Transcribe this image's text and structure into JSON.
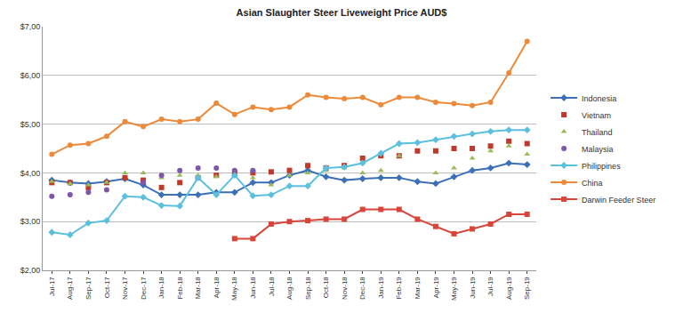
{
  "chart_data": {
    "type": "line",
    "title": "Asian Slaughter Steer Liveweight Price AUD$",
    "categories": [
      "Jul-17",
      "Aug-17",
      "Sep-17",
      "Oct-17",
      "Nov-17",
      "Dec-17",
      "Jan-18",
      "Feb-18",
      "Mar-18",
      "Apr-18",
      "May-18",
      "Jun-18",
      "Jul-18",
      "Aug-18",
      "Sep-18",
      "Oct-18",
      "Nov-18",
      "Dec-18",
      "Jan-19",
      "Feb-19",
      "Mar-19",
      "Apr-19",
      "May-19",
      "Jun-19",
      "Jul-19",
      "Aug-19",
      "Sep-19"
    ],
    "ylim": [
      2,
      7
    ],
    "yticks": [
      {
        "value": 2,
        "label": "$2,00"
      },
      {
        "value": 3,
        "label": "$3,00"
      },
      {
        "value": 4,
        "label": "$4,00"
      },
      {
        "value": 5,
        "label": "$5,00"
      },
      {
        "value": 6,
        "label": "$6,00"
      },
      {
        "value": 7,
        "label": "$7,00"
      }
    ],
    "grid": true,
    "legend": "right",
    "series": [
      {
        "name": "Indonesia",
        "color": "#3b6fb6",
        "marker": "diamond",
        "line_style": "solid",
        "values": [
          3.85,
          3.8,
          3.78,
          3.82,
          3.88,
          3.75,
          3.55,
          3.55,
          3.55,
          3.6,
          3.6,
          3.8,
          3.8,
          3.95,
          4.05,
          3.92,
          3.85,
          3.88,
          3.9,
          3.9,
          3.82,
          3.78,
          3.92,
          4.05,
          4.1,
          4.2,
          4.17
        ]
      },
      {
        "name": "Vietnam",
        "color": "#c0392b",
        "marker": "square",
        "line_style": "none",
        "values": [
          3.8,
          3.8,
          3.7,
          3.8,
          3.9,
          3.85,
          3.7,
          3.8,
          3.9,
          3.95,
          4.0,
          4.0,
          4.02,
          4.05,
          4.15,
          4.1,
          4.15,
          4.3,
          4.35,
          4.35,
          4.45,
          4.45,
          4.5,
          4.5,
          4.55,
          4.65,
          4.6
        ]
      },
      {
        "name": "Thailand",
        "color": "#9bbb59",
        "marker": "triangle",
        "line_style": "none",
        "values": [
          3.82,
          3.78,
          3.75,
          3.8,
          4.0,
          4.0,
          3.9,
          3.95,
          3.95,
          3.92,
          3.95,
          3.9,
          3.75,
          3.95,
          4.0,
          4.05,
          4.1,
          4.0,
          4.05,
          4.35,
          null,
          4.0,
          4.1,
          4.3,
          4.45,
          4.55,
          4.38
        ]
      },
      {
        "name": "Malaysia",
        "color": "#7e57a8",
        "marker": "circle",
        "line_style": "none",
        "values": [
          3.52,
          3.55,
          3.6,
          3.65,
          null,
          3.8,
          3.95,
          4.05,
          4.1,
          4.1,
          4.05,
          4.05,
          null,
          null,
          null,
          null,
          null,
          null,
          null,
          null,
          null,
          null,
          null,
          null,
          null,
          null,
          null
        ]
      },
      {
        "name": "Philippines",
        "color": "#5bc0de",
        "marker": "diamond",
        "line_style": "solid",
        "values": [
          2.78,
          2.73,
          2.97,
          3.02,
          3.52,
          3.5,
          3.33,
          3.32,
          3.9,
          3.55,
          3.95,
          3.53,
          3.55,
          3.73,
          3.73,
          4.1,
          4.12,
          4.2,
          4.4,
          4.6,
          4.62,
          4.68,
          4.75,
          4.8,
          4.85,
          4.88,
          4.88
        ]
      },
      {
        "name": "China",
        "color": "#ed8a3a",
        "marker": "circle",
        "line_style": "solid",
        "values": [
          4.38,
          4.57,
          4.6,
          4.75,
          5.05,
          4.95,
          5.1,
          5.05,
          5.1,
          5.43,
          5.2,
          5.35,
          5.3,
          5.35,
          5.6,
          5.55,
          5.52,
          5.55,
          5.4,
          5.55,
          5.55,
          5.45,
          5.42,
          5.38,
          5.45,
          6.05,
          6.7
        ]
      },
      {
        "name": "Darwin Feeder Steer",
        "color": "#d9453a",
        "marker": "square",
        "line_style": "solid",
        "values": [
          null,
          null,
          null,
          null,
          null,
          null,
          null,
          null,
          null,
          null,
          2.65,
          2.65,
          2.95,
          3.0,
          3.02,
          3.05,
          3.05,
          3.25,
          3.25,
          3.25,
          3.05,
          2.9,
          2.75,
          2.85,
          2.95,
          3.15,
          3.15
        ]
      }
    ]
  }
}
